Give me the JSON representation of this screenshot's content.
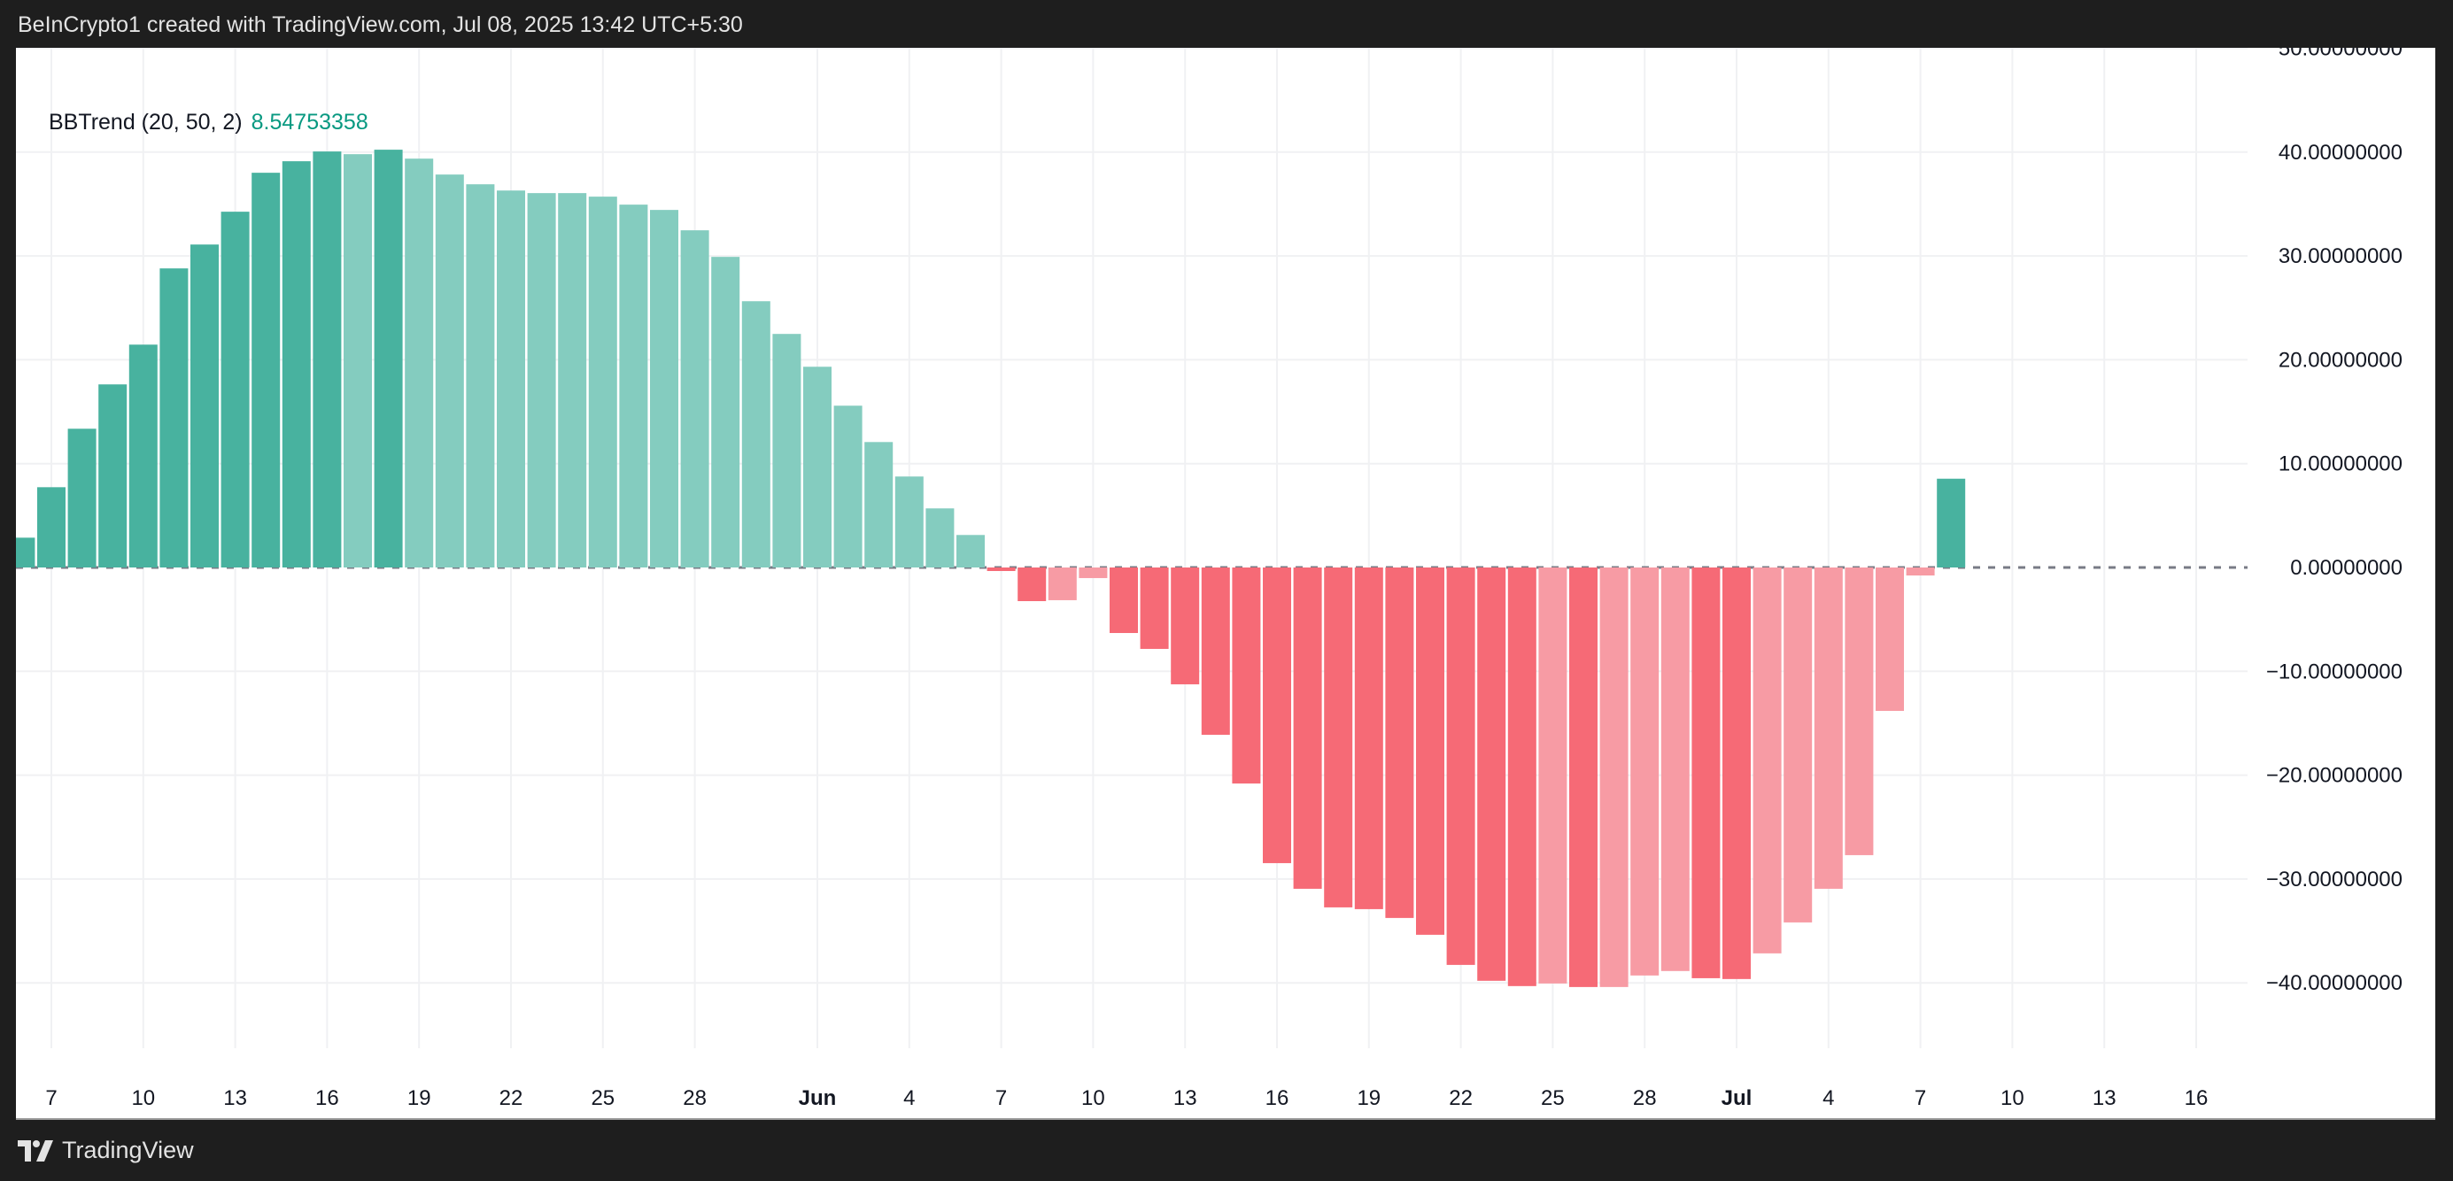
{
  "header": {
    "attribution": "BeInCrypto1 created with TradingView.com, Jul 08, 2025 13:42 UTC+5:30"
  },
  "legend": {
    "indicator": "BBTrend (20, 50, 2)",
    "value": "8.54753358"
  },
  "footer": {
    "brand": "TradingView",
    "logo_icon": "tradingview-logo-icon"
  },
  "colors": {
    "bull_strong": "#48b29f",
    "bull_weak": "#84ccbf",
    "bear_strong": "#f66a76",
    "bear_weak": "#f79ba4",
    "value_text": "#089981",
    "zero_line": "#787b86"
  },
  "chart_data": {
    "type": "bar",
    "title": "BBTrend (20, 50, 2)",
    "xlabel": "",
    "ylabel": "",
    "ylim": [
      -50,
      50
    ],
    "grid": true,
    "categories": [
      "May 6",
      "May 7",
      "May 8",
      "May 9",
      "May 10",
      "May 11",
      "May 12",
      "May 13",
      "May 14",
      "May 15",
      "May 16",
      "May 17",
      "May 18",
      "May 19",
      "May 20",
      "May 21",
      "May 22",
      "May 23",
      "May 24",
      "May 25",
      "May 26",
      "May 27",
      "May 28",
      "May 29",
      "May 30",
      "May 31",
      "Jun 1",
      "Jun 2",
      "Jun 3",
      "Jun 4",
      "Jun 5",
      "Jun 6",
      "Jun 7",
      "Jun 8",
      "Jun 9",
      "Jun 10",
      "Jun 11",
      "Jun 12",
      "Jun 13",
      "Jun 14",
      "Jun 15",
      "Jun 16",
      "Jun 17",
      "Jun 18",
      "Jun 19",
      "Jun 20",
      "Jun 21",
      "Jun 22",
      "Jun 23",
      "Jun 24",
      "Jun 25",
      "Jun 26",
      "Jun 27",
      "Jun 28",
      "Jun 29",
      "Jun 30",
      "Jul 1",
      "Jul 2",
      "Jul 3",
      "Jul 4",
      "Jul 5",
      "Jul 6",
      "Jul 7",
      "Jul 8"
    ],
    "values": [
      2.87,
      7.73,
      13.36,
      17.63,
      21.46,
      28.8,
      31.1,
      34.26,
      38.01,
      39.12,
      40.06,
      39.8,
      40.23,
      39.37,
      37.84,
      36.9,
      36.3,
      36.05,
      36.05,
      35.71,
      34.94,
      34.43,
      32.47,
      29.91,
      25.64,
      22.49,
      19.33,
      15.58,
      12.08,
      8.76,
      5.69,
      3.13,
      -0.34,
      -3.24,
      -3.15,
      -1.02,
      -6.31,
      -7.84,
      -11.25,
      -16.11,
      -20.8,
      -28.47,
      -30.94,
      -32.73,
      -32.9,
      -33.75,
      -35.37,
      -38.27,
      -39.8,
      -40.31,
      -40.06,
      -40.4,
      -40.4,
      -39.29,
      -38.86,
      -39.55,
      -39.63,
      -37.16,
      -34.18,
      -30.94,
      -27.7,
      -13.81,
      -0.77,
      8.54753358
    ],
    "strength": [
      "s",
      "s",
      "s",
      "s",
      "s",
      "s",
      "s",
      "s",
      "s",
      "s",
      "s",
      "w",
      "s",
      "w",
      "w",
      "w",
      "w",
      "w",
      "w",
      "w",
      "w",
      "w",
      "w",
      "w",
      "w",
      "w",
      "w",
      "w",
      "w",
      "w",
      "w",
      "w",
      "s",
      "s",
      "w",
      "w",
      "s",
      "s",
      "s",
      "s",
      "s",
      "s",
      "s",
      "s",
      "s",
      "s",
      "s",
      "s",
      "s",
      "s",
      "w",
      "s",
      "w",
      "w",
      "w",
      "s",
      "s",
      "w",
      "w",
      "w",
      "w",
      "w",
      "w",
      "s"
    ],
    "y_ticks": [
      "50.00000000",
      "40.00000000",
      "30.00000000",
      "20.00000000",
      "10.00000000",
      "0.00000000",
      "−10.00000000",
      "−20.00000000",
      "−30.00000000",
      "−40.00000000"
    ],
    "y_tick_values": [
      50,
      40,
      30,
      20,
      10,
      0,
      -10,
      -20,
      -30,
      -40
    ],
    "x_ticks": [
      "7",
      "10",
      "13",
      "16",
      "19",
      "22",
      "25",
      "28",
      "Jun",
      "4",
      "7",
      "10",
      "13",
      "16",
      "19",
      "22",
      "25",
      "28",
      "Jul",
      "4",
      "7",
      "10",
      "13",
      "16"
    ],
    "x_tick_index": [
      1,
      4,
      7,
      10,
      13,
      16,
      19,
      22,
      26,
      29,
      32,
      35,
      38,
      41,
      44,
      47,
      50,
      53,
      56,
      59,
      62,
      65,
      68,
      71
    ]
  }
}
